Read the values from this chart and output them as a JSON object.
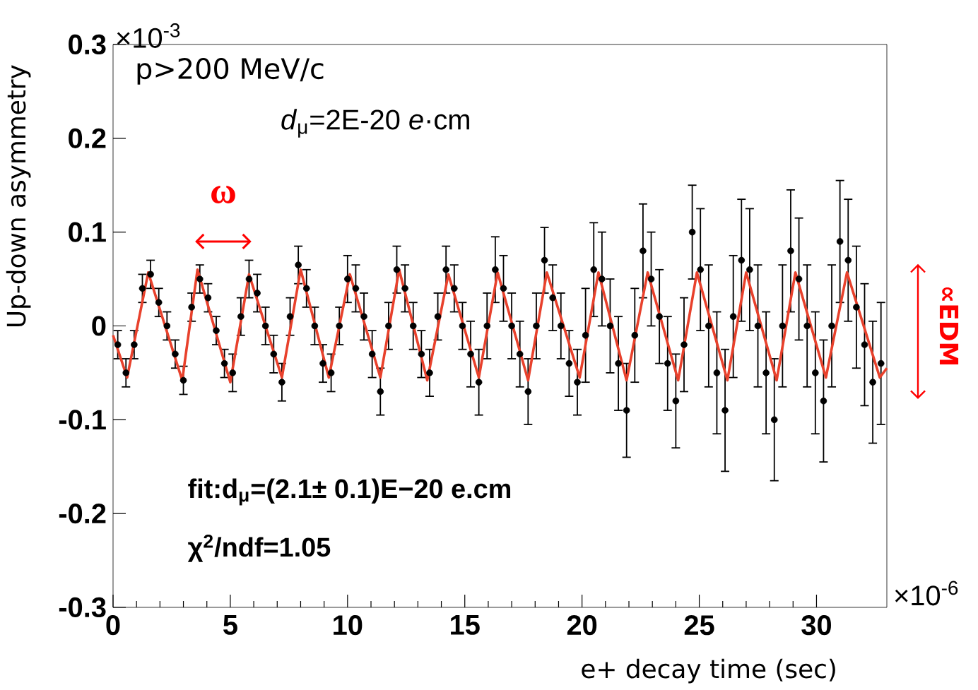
{
  "chart_data": {
    "type": "scatter",
    "xlabel": "e+ decay time (sec)",
    "ylabel": "Up-down asymmetry",
    "xlim": [
      0,
      33
    ],
    "ylim": [
      -0.3,
      0.3
    ],
    "xticks": [
      0,
      5,
      10,
      15,
      20,
      25,
      30
    ],
    "yticks": [
      -0.3,
      -0.2,
      -0.1,
      0,
      0.1,
      0.2,
      0.3
    ],
    "grid": false,
    "annotations": [
      "×10$^{-3}$",
      "×10$^{-6}$",
      "p>200 MeV/c",
      "*d*$_{μ}$=2E-20 *e*·cm",
      "ω",
      "∝EDM",
      "fit:d$_{μ}$=(2.1± 0.1)E−20 e.cm",
      "χ$^{2}$/ndf=1.05"
    ],
    "series": [
      {
        "type": "scatter",
        "color": "#000000",
        "marker": "circle",
        "x": [
          0.2,
          0.55,
          0.9,
          1.25,
          1.6,
          1.95,
          2.3,
          2.65,
          3.0,
          3.35,
          3.7,
          4.05,
          4.4,
          4.75,
          5.1,
          5.45,
          5.8,
          6.15,
          6.5,
          6.85,
          7.2,
          7.55,
          7.9,
          8.25,
          8.6,
          8.95,
          9.3,
          9.65,
          10.0,
          10.35,
          10.7,
          11.05,
          11.4,
          11.75,
          12.1,
          12.45,
          12.8,
          13.15,
          13.5,
          13.85,
          14.2,
          14.55,
          14.9,
          15.25,
          15.6,
          15.95,
          16.3,
          16.65,
          17.0,
          17.35,
          17.7,
          18.05,
          18.4,
          18.75,
          19.1,
          19.45,
          19.8,
          20.15,
          20.5,
          20.85,
          21.2,
          21.55,
          21.9,
          22.25,
          22.6,
          22.95,
          23.3,
          23.65,
          24.0,
          24.35,
          24.7,
          25.05,
          25.4,
          25.75,
          26.1,
          26.45,
          26.8,
          27.15,
          27.5,
          27.85,
          28.2,
          28.55,
          28.9,
          29.25,
          29.6,
          29.95,
          30.3,
          30.65,
          31.0,
          31.35,
          31.7,
          32.05,
          32.4,
          32.75
        ],
        "values": [
          -0.02,
          -0.05,
          -0.02,
          0.04,
          0.055,
          0.025,
          0.0,
          -0.03,
          -0.058,
          0.02,
          0.05,
          0.03,
          -0.005,
          -0.04,
          -0.05,
          0.01,
          0.05,
          0.035,
          0.0,
          -0.03,
          -0.06,
          0.01,
          0.065,
          0.04,
          0.0,
          -0.04,
          -0.05,
          0.0,
          0.05,
          0.04,
          0.01,
          -0.03,
          -0.07,
          0.0,
          0.06,
          0.04,
          0.0,
          -0.03,
          -0.05,
          0.01,
          0.06,
          0.04,
          0.0,
          -0.03,
          -0.06,
          0.0,
          0.06,
          0.04,
          0.0,
          -0.03,
          -0.07,
          0.0,
          0.07,
          0.03,
          0.0,
          -0.04,
          -0.06,
          -0.01,
          0.06,
          0.05,
          0.0,
          -0.04,
          -0.09,
          -0.01,
          0.08,
          0.05,
          0.01,
          -0.04,
          -0.08,
          -0.02,
          0.1,
          0.06,
          0.0,
          -0.05,
          -0.09,
          0.01,
          0.07,
          0.06,
          0.0,
          -0.05,
          -0.1,
          0.0,
          0.08,
          0.05,
          0.0,
          -0.05,
          -0.08,
          0.0,
          0.09,
          0.07,
          0.02,
          -0.02,
          -0.06,
          -0.04
        ],
        "errors": [
          0.015,
          0.015,
          0.015,
          0.015,
          0.015,
          0.015,
          0.015,
          0.015,
          0.015,
          0.015,
          0.015,
          0.015,
          0.015,
          0.015,
          0.02,
          0.02,
          0.02,
          0.02,
          0.02,
          0.02,
          0.02,
          0.02,
          0.02,
          0.02,
          0.02,
          0.02,
          0.02,
          0.02,
          0.025,
          0.025,
          0.025,
          0.025,
          0.025,
          0.025,
          0.025,
          0.025,
          0.025,
          0.025,
          0.025,
          0.025,
          0.025,
          0.025,
          0.025,
          0.035,
          0.035,
          0.035,
          0.035,
          0.035,
          0.035,
          0.035,
          0.035,
          0.035,
          0.035,
          0.035,
          0.035,
          0.035,
          0.035,
          0.05,
          0.05,
          0.05,
          0.05,
          0.05,
          0.05,
          0.05,
          0.05,
          0.05,
          0.05,
          0.05,
          0.05,
          0.05,
          0.05,
          0.065,
          0.065,
          0.065,
          0.065,
          0.065,
          0.065,
          0.065,
          0.065,
          0.065,
          0.065,
          0.065,
          0.065,
          0.065,
          0.065,
          0.065,
          0.065,
          0.065,
          0.065,
          0.065,
          0.065,
          0.065,
          0.065,
          0.065
        ]
      },
      {
        "type": "line",
        "color": "#e8412c",
        "marker": "none",
        "x": [
          0,
          0.6,
          1.5,
          2.95,
          3.6,
          5.0,
          5.8,
          7.2,
          8.0,
          9.2,
          10.1,
          11.4,
          12.2,
          13.4,
          14.3,
          15.6,
          16.4,
          17.7,
          18.5,
          19.9,
          20.7,
          21.9,
          22.8,
          24.1,
          24.9,
          26.2,
          27.0,
          28.3,
          29.1,
          30.4,
          31.3,
          32.7,
          33
        ],
        "values": [
          -0.01,
          -0.055,
          0.057,
          -0.058,
          0.06,
          -0.06,
          0.055,
          -0.055,
          0.06,
          -0.055,
          0.055,
          -0.055,
          0.06,
          -0.058,
          0.055,
          -0.055,
          0.057,
          -0.058,
          0.057,
          -0.055,
          0.057,
          -0.058,
          0.057,
          -0.058,
          0.057,
          -0.058,
          0.057,
          -0.058,
          0.057,
          -0.055,
          0.057,
          -0.055,
          -0.045
        ]
      }
    ]
  }
}
